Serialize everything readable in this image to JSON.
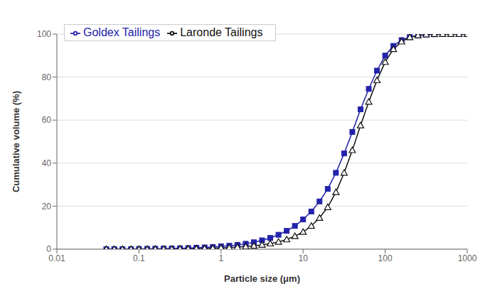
{
  "chart_data": {
    "type": "line",
    "xlabel": "Particle size (μm)",
    "ylabel": "Cumulative volume (%)",
    "log": "x",
    "grid": true,
    "legend": "upper left",
    "xlim": [
      0.01,
      1000
    ],
    "xticks": [
      0.01,
      0.1,
      1,
      10,
      100,
      1000
    ],
    "ylim": [
      0,
      100
    ],
    "yticks": [
      0,
      20,
      40,
      60,
      80,
      100
    ],
    "x": [
      0.04,
      0.05,
      0.063,
      0.08,
      0.1,
      0.126,
      0.158,
      0.2,
      0.251,
      0.316,
      0.398,
      0.501,
      0.631,
      0.794,
      1.0,
      1.26,
      1.585,
      2.0,
      2.512,
      3.162,
      3.981,
      5.012,
      6.31,
      7.943,
      10.0,
      12.59,
      15.85,
      19.95,
      25.12,
      31.62,
      39.81,
      50.12,
      63.1,
      79.43,
      100.0,
      125.9,
      158.5,
      199.5,
      251.2,
      316.2,
      398.1,
      501.2,
      631.0,
      794.3,
      1000.0
    ],
    "series": [
      {
        "name": "Goldex Tailings",
        "color": "#2222aa",
        "marker": "square",
        "values": [
          0.0,
          0.0,
          0.0,
          0.05,
          0.1,
          0.15,
          0.2,
          0.25,
          0.3,
          0.4,
          0.5,
          0.65,
          0.8,
          1.0,
          1.3,
          1.6,
          2.0,
          2.5,
          3.2,
          4.1,
          5.2,
          6.7,
          8.5,
          10.8,
          13.8,
          17.5,
          22.2,
          28.0,
          35.5,
          44.5,
          54.5,
          65.0,
          74.5,
          83.0,
          90.0,
          94.5,
          97.2,
          98.6,
          99.3,
          99.7,
          99.9,
          100.0,
          100.0,
          100.0,
          100.0
        ]
      },
      {
        "name": "Laronde Tailings",
        "color": "#111111",
        "marker": "triangle",
        "values": [
          0.0,
          0.0,
          0.0,
          0.0,
          0.0,
          0.0,
          0.05,
          0.1,
          0.1,
          0.15,
          0.2,
          0.25,
          0.35,
          0.45,
          0.6,
          0.75,
          0.95,
          1.2,
          1.55,
          2.0,
          2.6,
          3.4,
          4.5,
          6.0,
          8.0,
          10.8,
          14.5,
          19.5,
          26.5,
          35.5,
          46.0,
          57.5,
          68.5,
          78.5,
          87.0,
          93.0,
          96.5,
          98.5,
          99.4,
          99.8,
          100.0,
          100.0,
          100.0,
          100.0,
          100.0
        ]
      }
    ]
  }
}
